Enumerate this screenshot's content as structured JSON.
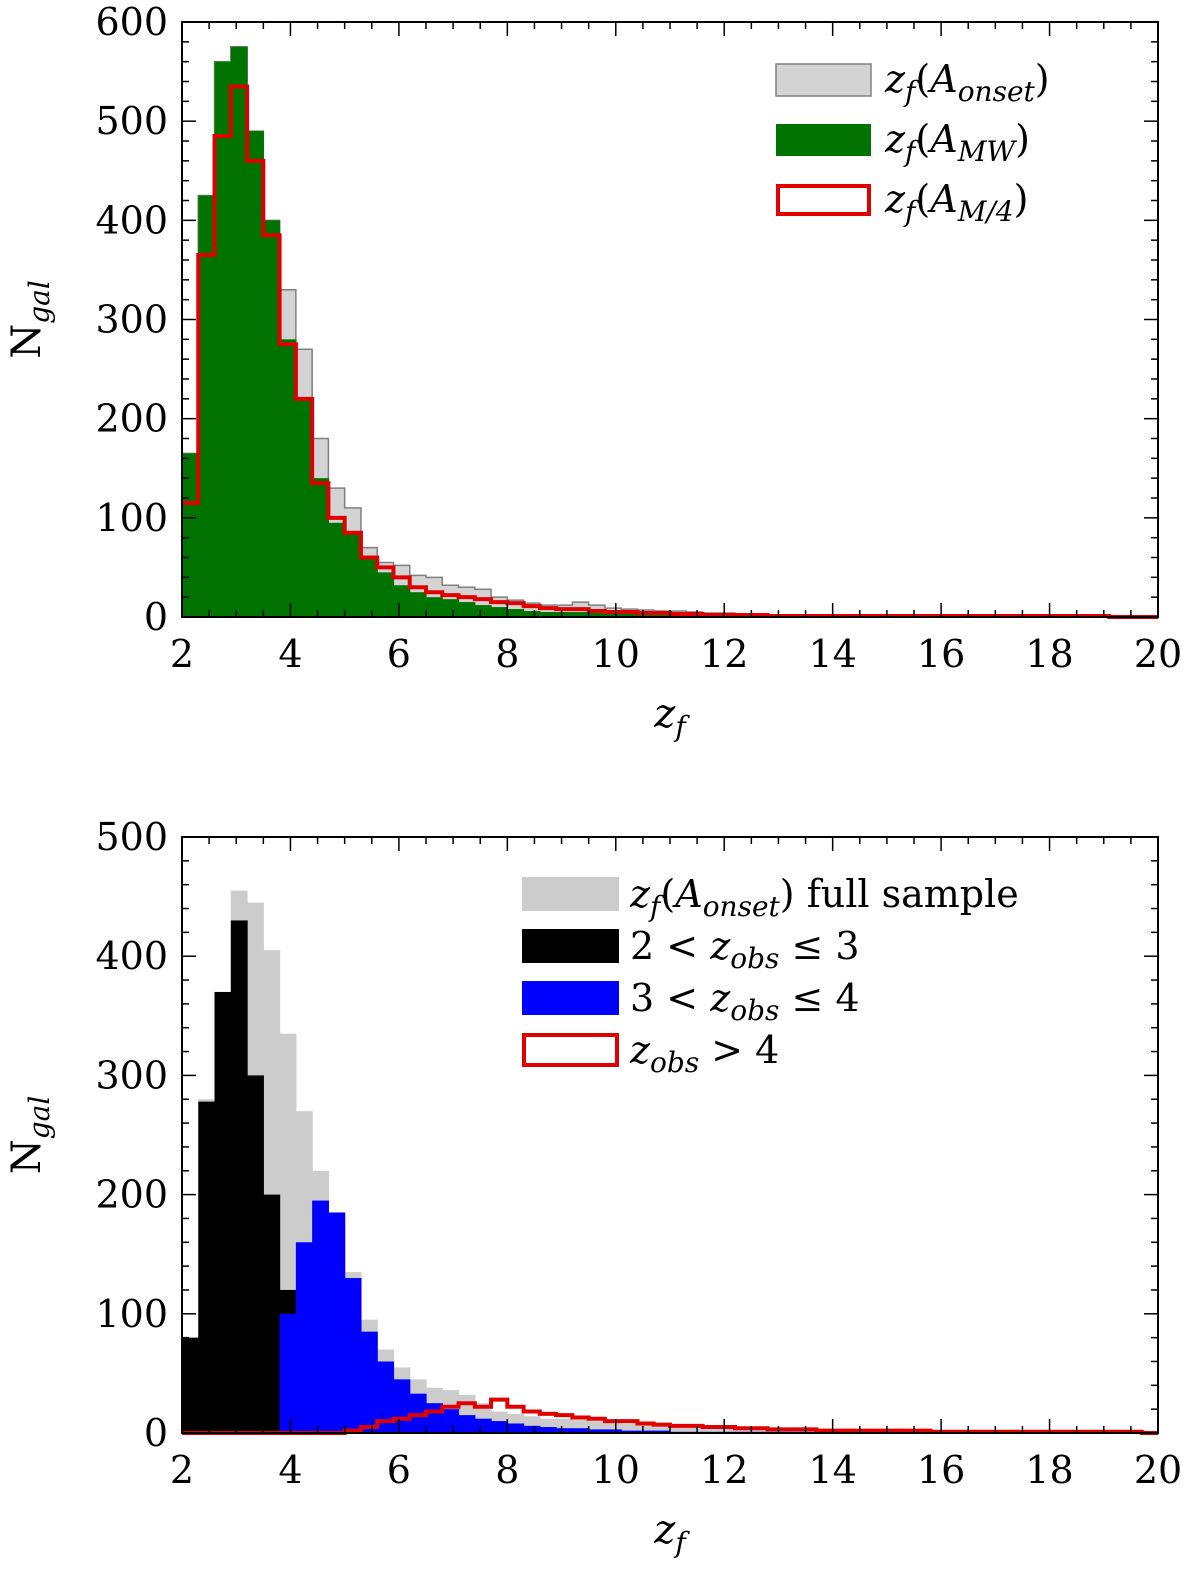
{
  "chart_data": [
    {
      "type": "histogram",
      "bins": {
        "start": 2.0,
        "width": 0.3,
        "count": 60
      },
      "xlim": [
        2,
        20
      ],
      "ylim": [
        0,
        600
      ],
      "x_ticks": [
        2,
        4,
        6,
        8,
        10,
        12,
        14,
        16,
        18,
        20
      ],
      "y_ticks": [
        0,
        100,
        200,
        300,
        400,
        500,
        600
      ],
      "xlabel": "z_f",
      "ylabel": "N_gal",
      "legend_position": "top-right",
      "series": [
        {
          "name": "z_f(A_onset)",
          "style": "filled",
          "fill": "#d3d3d3",
          "edge": "#808080",
          "values": [
            165,
            425,
            560,
            575,
            490,
            400,
            330,
            270,
            180,
            130,
            110,
            70,
            55,
            52,
            42,
            40,
            32,
            30,
            28,
            20,
            17,
            14,
            12,
            12,
            15,
            12,
            9,
            8,
            7,
            6,
            6,
            5,
            4,
            4,
            3,
            3,
            2,
            2,
            2,
            2,
            2,
            1,
            1,
            1,
            1,
            1,
            1,
            1,
            1,
            1,
            1,
            1,
            1,
            1,
            1,
            0,
            0,
            0,
            0,
            0
          ]
        },
        {
          "name": "z_f(A_MW)",
          "style": "filled",
          "fill": "#007300",
          "edge": "#007300",
          "values": [
            165,
            425,
            560,
            575,
            490,
            400,
            280,
            220,
            140,
            95,
            85,
            58,
            45,
            32,
            25,
            20,
            18,
            15,
            12,
            10,
            8,
            6,
            5,
            5,
            5,
            4,
            3,
            3,
            2,
            2,
            2,
            2,
            1,
            1,
            1,
            1,
            1,
            1,
            1,
            1,
            1,
            1,
            0,
            0,
            0,
            0,
            0,
            0,
            0,
            0,
            0,
            0,
            0,
            0,
            0,
            0,
            0,
            0,
            0,
            0
          ]
        },
        {
          "name": "z_f(A_M/4)",
          "style": "step",
          "edge": "#e00000",
          "values": [
            115,
            365,
            485,
            535,
            460,
            385,
            275,
            220,
            135,
            100,
            85,
            60,
            50,
            40,
            30,
            25,
            22,
            20,
            18,
            15,
            14,
            11,
            9,
            8,
            8,
            6,
            5,
            5,
            4,
            4,
            3,
            3,
            2,
            2,
            2,
            2,
            1,
            1,
            1,
            1,
            1,
            1,
            1,
            1,
            1,
            1,
            1,
            1,
            1,
            1,
            1,
            1,
            1,
            1,
            1,
            1,
            1,
            0,
            0,
            0
          ]
        }
      ]
    },
    {
      "type": "histogram",
      "bins": {
        "start": 2.0,
        "width": 0.3,
        "count": 60
      },
      "xlim": [
        2,
        20
      ],
      "ylim": [
        0,
        500
      ],
      "x_ticks": [
        2,
        4,
        6,
        8,
        10,
        12,
        14,
        16,
        18,
        20
      ],
      "y_ticks": [
        0,
        100,
        200,
        300,
        400,
        500
      ],
      "xlabel": "z_f",
      "ylabel": "N_gal",
      "legend_position": "top-right",
      "series": [
        {
          "name": "z_f(A_onset) full sample",
          "style": "filled",
          "fill": "#cccccc",
          "edge": "none",
          "values": [
            80,
            280,
            370,
            455,
            445,
            405,
            335,
            270,
            220,
            175,
            135,
            95,
            70,
            55,
            45,
            38,
            36,
            32,
            25,
            18,
            16,
            14,
            12,
            12,
            11,
            10,
            9,
            8,
            7,
            6,
            5,
            5,
            4,
            4,
            3,
            3,
            3,
            2,
            2,
            2,
            2,
            2,
            2,
            1,
            1,
            1,
            1,
            1,
            1,
            1,
            1,
            1,
            1,
            1,
            1,
            1,
            1,
            1,
            1,
            0
          ]
        },
        {
          "name": "2 < z_obs ≤ 3",
          "style": "filled",
          "fill": "#000000",
          "edge": "#000000",
          "values": [
            80,
            278,
            370,
            430,
            300,
            200,
            120,
            60,
            35,
            22,
            28,
            20,
            12,
            8,
            5,
            4,
            3,
            2,
            1,
            1,
            1,
            1,
            0,
            0,
            0,
            0,
            0,
            0,
            0,
            0,
            0,
            0,
            0,
            0,
            0,
            0,
            0,
            0,
            0,
            0,
            0,
            0,
            0,
            0,
            0,
            0,
            0,
            0,
            0,
            0,
            0,
            0,
            0,
            0,
            0,
            0,
            0,
            0,
            0,
            0
          ]
        },
        {
          "name": "3 < z_obs ≤ 4",
          "style": "filled",
          "fill": "#0000ff",
          "edge": "#0000ff",
          "values": [
            0,
            0,
            0,
            0,
            0,
            0,
            100,
            160,
            195,
            185,
            130,
            85,
            60,
            45,
            33,
            25,
            20,
            15,
            12,
            10,
            8,
            6,
            5,
            4,
            4,
            3,
            3,
            2,
            2,
            2,
            1,
            1,
            1,
            1,
            1,
            1,
            1,
            1,
            1,
            1,
            1,
            1,
            1,
            0,
            0,
            0,
            0,
            0,
            0,
            0,
            0,
            0,
            0,
            0,
            0,
            0,
            0,
            0,
            0,
            0
          ]
        },
        {
          "name": "z_obs > 4",
          "style": "step",
          "edge": "#e00000",
          "values": [
            0,
            0,
            0,
            0,
            0,
            0,
            0,
            0,
            0,
            0,
            2,
            5,
            10,
            12,
            15,
            18,
            22,
            25,
            22,
            28,
            22,
            18,
            16,
            15,
            13,
            12,
            10,
            10,
            8,
            7,
            6,
            6,
            5,
            5,
            4,
            4,
            3,
            3,
            3,
            2,
            2,
            2,
            2,
            2,
            2,
            2,
            1,
            1,
            1,
            1,
            1,
            1,
            1,
            1,
            1,
            1,
            1,
            1,
            1,
            0
          ]
        }
      ]
    }
  ]
}
